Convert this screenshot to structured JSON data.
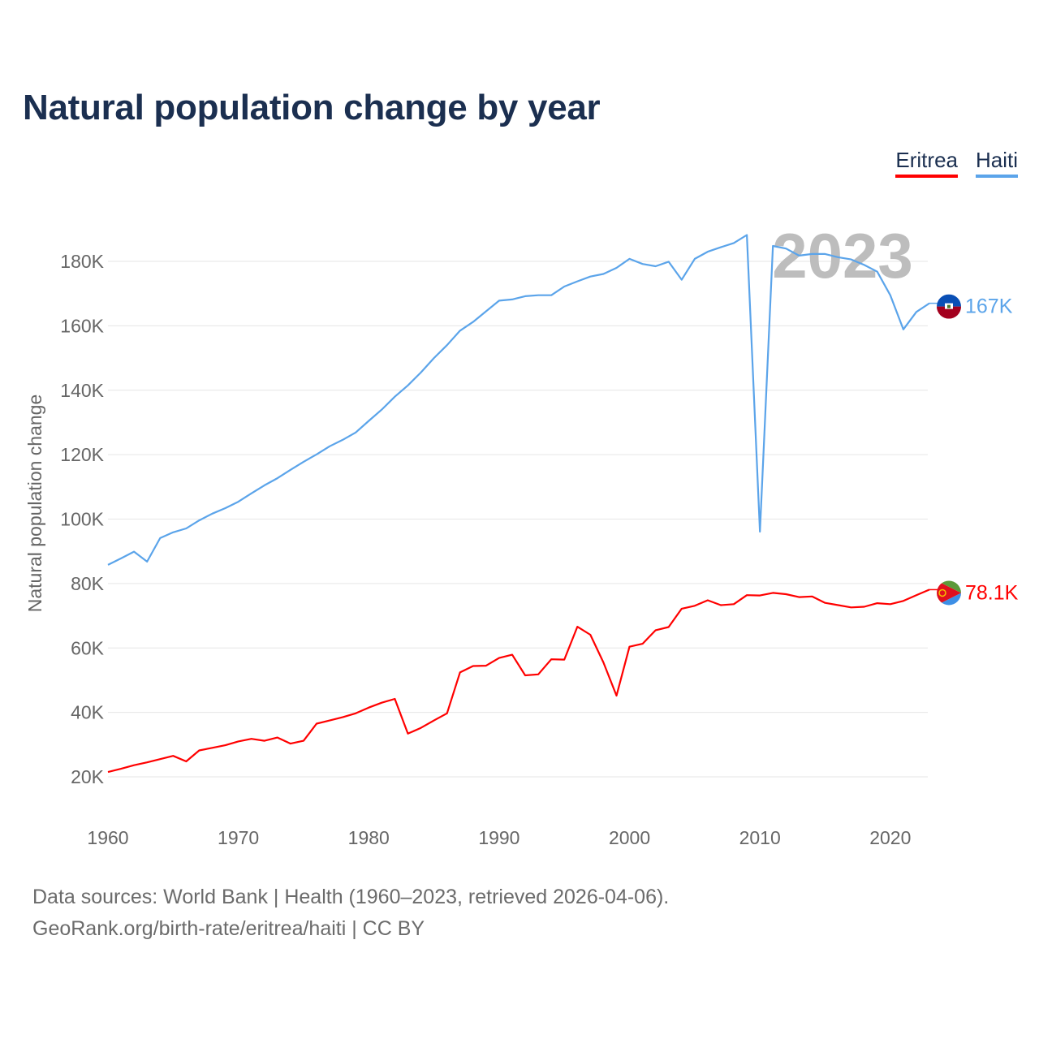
{
  "title": "Natural population change by year",
  "legend": [
    {
      "label": "Eritrea",
      "color": "#ff0000"
    },
    {
      "label": "Haiti",
      "color": "#5ba4ea"
    }
  ],
  "footer": {
    "line1": "Data sources: World Bank | Health (1960–2023, retrieved 2026-04-06).",
    "line2": "GeoRank.org/birth-rate/eritrea/haiti | CC BY"
  },
  "chart_data": {
    "type": "line",
    "title": "Natural population change by year",
    "xlabel": "",
    "ylabel": "Natural population change",
    "year_watermark": "2023",
    "x": [
      1960,
      1961,
      1962,
      1963,
      1964,
      1965,
      1966,
      1967,
      1968,
      1969,
      1970,
      1971,
      1972,
      1973,
      1974,
      1975,
      1976,
      1977,
      1978,
      1979,
      1980,
      1981,
      1982,
      1983,
      1984,
      1985,
      1986,
      1987,
      1988,
      1989,
      1990,
      1991,
      1992,
      1993,
      1994,
      1995,
      1996,
      1997,
      1998,
      1999,
      2000,
      2001,
      2002,
      2003,
      2004,
      2005,
      2006,
      2007,
      2008,
      2009,
      2010,
      2011,
      2012,
      2013,
      2014,
      2015,
      2016,
      2017,
      2018,
      2019,
      2020,
      2021,
      2022,
      2023
    ],
    "xlim": [
      1960,
      2023
    ],
    "ylim": [
      10000,
      190000
    ],
    "xticks": [
      1960,
      1970,
      1980,
      1990,
      2000,
      2010,
      2020
    ],
    "yticks": [
      20000,
      40000,
      60000,
      80000,
      100000,
      120000,
      140000,
      160000,
      180000
    ],
    "ytick_labels": [
      "20K",
      "40K",
      "60K",
      "80K",
      "100K",
      "120K",
      "140K",
      "160K",
      "180K"
    ],
    "grid": true,
    "legend_position": "top-right",
    "series": [
      {
        "name": "Eritrea",
        "color": "#ff0000",
        "end_label": "78.1K",
        "flag": "eritrea-flag",
        "values": [
          21500,
          22500,
          23600,
          24500,
          25500,
          26500,
          24800,
          28200,
          29000,
          29800,
          31000,
          31800,
          31200,
          32200,
          30300,
          31200,
          36500,
          37500,
          38500,
          39700,
          41500,
          43000,
          44200,
          33400,
          35200,
          37500,
          39700,
          52400,
          54400,
          54500,
          56900,
          57900,
          51500,
          51800,
          56500,
          56400,
          66600,
          64100,
          55500,
          45200,
          60400,
          61300,
          65500,
          66500,
          72200,
          73100,
          74800,
          73300,
          73600,
          76400,
          76300,
          77100,
          76700,
          75800,
          76000,
          74000,
          73300,
          72600,
          72800,
          73900,
          73600,
          74600,
          76400,
          78100
        ]
      },
      {
        "name": "Haiti",
        "color": "#5ba4ea",
        "end_label": "167K",
        "flag": "haiti-flag",
        "values": [
          85800,
          87800,
          89900,
          86800,
          94100,
          95900,
          97100,
          99600,
          101700,
          103400,
          105400,
          108000,
          110500,
          112700,
          115300,
          117800,
          120100,
          122600,
          124600,
          126900,
          130500,
          134000,
          138000,
          141500,
          145500,
          150000,
          154000,
          158500,
          161200,
          164500,
          167800,
          168200,
          169200,
          169500,
          169500,
          172200,
          173800,
          175300,
          176100,
          178000,
          180800,
          179200,
          178500,
          179900,
          174300,
          180800,
          183000,
          184400,
          185700,
          188200,
          96100,
          184800,
          184000,
          181800,
          182300,
          182300,
          181300,
          180600,
          178900,
          176800,
          169500,
          158900,
          164300,
          167000
        ]
      }
    ]
  }
}
